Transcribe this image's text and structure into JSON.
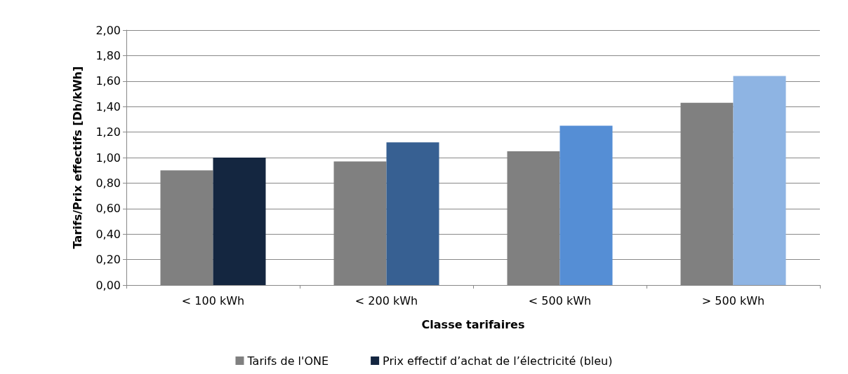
{
  "chart_data": {
    "type": "bar",
    "xlabel": "Classe tarifaires",
    "ylabel": "Tarifs/Prix effectifs [Dh/kWh]",
    "categories": [
      "< 100 kWh",
      "< 200 kWh",
      "< 500 kWh",
      "> 500 kWh"
    ],
    "series": [
      {
        "name": "Tarifs de l'ONE",
        "color": "#808080",
        "values": [
          0.9,
          0.97,
          1.05,
          1.43
        ]
      },
      {
        "name": "Prix effectif d’achat de l’électricité (bleu)",
        "colors": [
          "#142640",
          "#376092",
          "#558ed5",
          "#8eb4e3"
        ],
        "values": [
          1.0,
          1.12,
          1.25,
          1.64
        ]
      }
    ],
    "ylim": [
      0,
      2
    ],
    "yticks": [
      {
        "value": 0,
        "label": "0,00"
      },
      {
        "value": 0.2,
        "label": "0,20"
      },
      {
        "value": 0.4,
        "label": "0,40"
      },
      {
        "value": 0.6,
        "label": "0,60"
      },
      {
        "value": 0.8,
        "label": "0,80"
      },
      {
        "value": 1,
        "label": "1,00"
      },
      {
        "value": 1.2,
        "label": "1,20"
      },
      {
        "value": 1.4,
        "label": "1,40"
      },
      {
        "value": 1.6,
        "label": "1,60"
      },
      {
        "value": 1.8,
        "label": "1,80"
      },
      {
        "value": 2,
        "label": "2,00"
      }
    ],
    "grid": "y",
    "legend": "bottom"
  }
}
